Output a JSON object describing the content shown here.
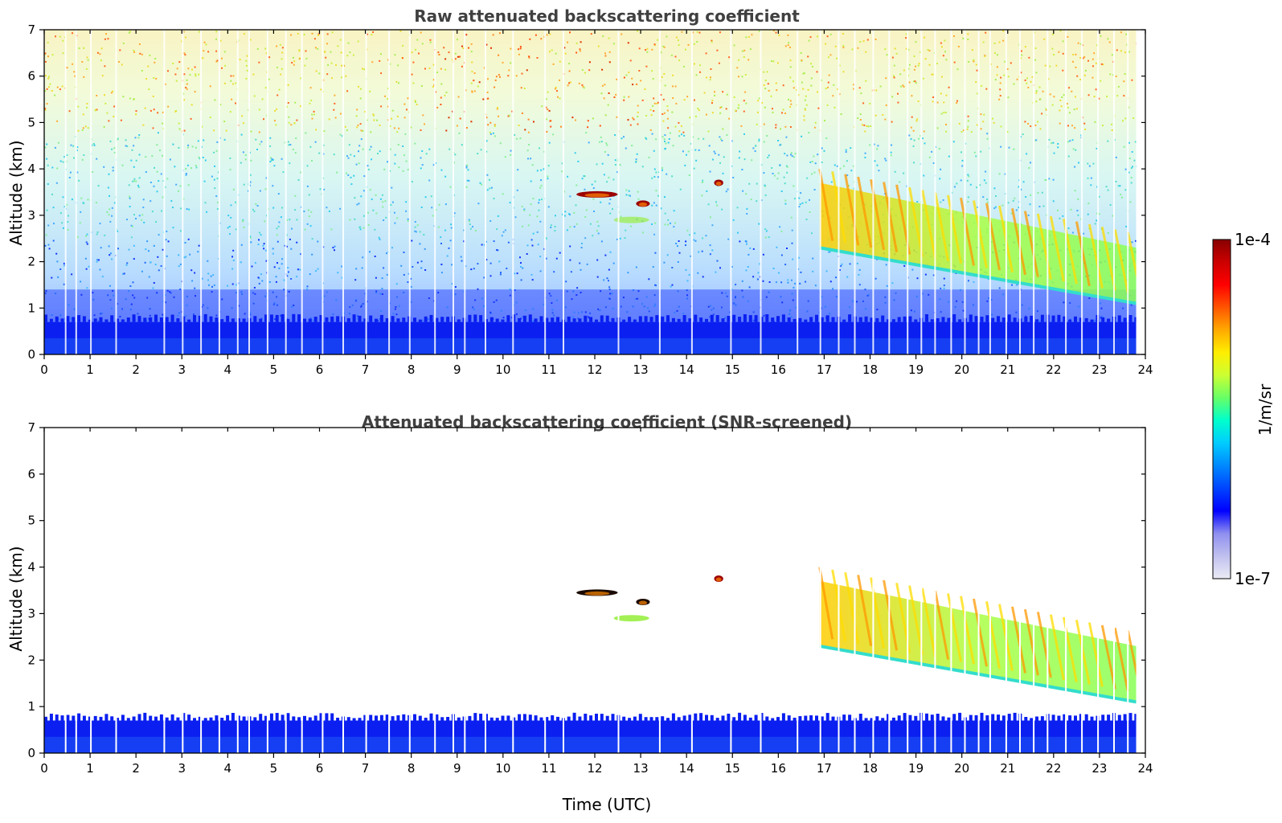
{
  "chart_data": [
    {
      "type": "heatmap",
      "title": "Raw attenuated backscattering coefficient",
      "ylabel": "Altitude (km)",
      "xlabel": "",
      "xlim": [
        0,
        24
      ],
      "ylim": [
        0,
        7
      ],
      "x_ticks": [
        "0",
        "1",
        "2",
        "3",
        "4",
        "5",
        "6",
        "7",
        "8",
        "9",
        "10",
        "11",
        "12",
        "13",
        "14",
        "15",
        "16",
        "17",
        "18",
        "19",
        "20",
        "21",
        "22",
        "23",
        "24"
      ],
      "y_ticks": [
        "0",
        "1",
        "2",
        "3",
        "4",
        "5",
        "6",
        "7"
      ],
      "log_scale_colors": true,
      "features": [
        {
          "kind": "boundary-layer",
          "x_range": [
            0,
            23.8
          ],
          "altitude_top_km": 0.7
        },
        {
          "kind": "cloud",
          "x_range": [
            11.6,
            12.5
          ],
          "altitude_km": 3.45
        },
        {
          "kind": "cloud",
          "x_range": [
            12.9,
            13.2
          ],
          "altitude_km": 3.25
        },
        {
          "kind": "cloud",
          "x_range": [
            14.6,
            14.8
          ],
          "altitude_km": 3.7
        },
        {
          "kind": "aerosol-layer",
          "x_range": [
            16.9,
            23.8
          ],
          "altitude_top_km": [
            3.7,
            2.3
          ],
          "altitude_base_km": [
            2.3,
            1.1
          ]
        }
      ]
    },
    {
      "type": "heatmap",
      "title": "Attenuated backscattering coefficient (SNR-screened)",
      "ylabel": "Altitude (km)",
      "xlabel": "Time (UTC)",
      "xlim": [
        0,
        24
      ],
      "ylim": [
        0,
        7
      ],
      "x_ticks": [
        "0",
        "1",
        "2",
        "3",
        "4",
        "5",
        "6",
        "7",
        "8",
        "9",
        "10",
        "11",
        "12",
        "13",
        "14",
        "15",
        "16",
        "17",
        "18",
        "19",
        "20",
        "21",
        "22",
        "23",
        "24"
      ],
      "y_ticks": [
        "0",
        "1",
        "2",
        "3",
        "4",
        "5",
        "6",
        "7"
      ],
      "log_scale_colors": true,
      "features": [
        {
          "kind": "boundary-layer",
          "x_range": [
            0,
            23.8
          ],
          "altitude_top_km": 0.7
        },
        {
          "kind": "cloud",
          "x_range": [
            11.6,
            12.5
          ],
          "altitude_km": 3.45
        },
        {
          "kind": "cloud",
          "x_range": [
            12.9,
            13.2
          ],
          "altitude_km": 3.25
        },
        {
          "kind": "cloud",
          "x_range": [
            14.6,
            14.8
          ],
          "altitude_km": 3.75
        },
        {
          "kind": "aerosol-layer",
          "x_range": [
            16.9,
            23.8
          ],
          "altitude_top_km": [
            3.7,
            2.3
          ],
          "altitude_base_km": [
            2.3,
            1.1
          ]
        }
      ]
    }
  ],
  "colorbar": {
    "label": "1/m/sr",
    "max_label": "1e-4",
    "min_label": "1e-7",
    "colors": [
      "#ebebf5",
      "#c0c0ef",
      "#8f8ff0",
      "#0000ff",
      "#0044ff",
      "#0088ff",
      "#00ccff",
      "#00ffcc",
      "#66ff66",
      "#ccff33",
      "#ffee00",
      "#ffaa00",
      "#ff5500",
      "#ff0000",
      "#cc0000",
      "#880000"
    ]
  },
  "colors": {
    "title_text": "#404040",
    "boundary_blue": "#0a1ff0",
    "cloud_dark": "#9c0000"
  }
}
